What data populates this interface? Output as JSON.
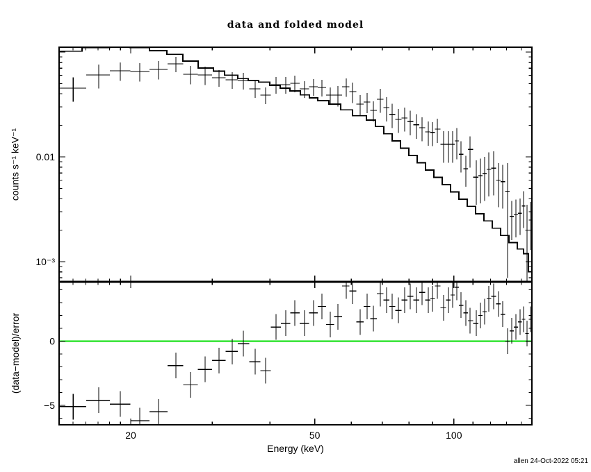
{
  "title": "data and folded model",
  "footer": "allen 24-Oct-2022 05:21",
  "colors": {
    "foreground": "#000000",
    "background": "#ffffff",
    "zero_line": "#00dd00"
  },
  "chart_data": {
    "type": "scatter",
    "subtype": "spectrum-with-residuals",
    "title": "data and folded model",
    "xlabel": "Energy (keV)",
    "x_scale": "log",
    "x_range": [
      14.0,
      147.5
    ],
    "x_major_ticks": [
      20,
      50,
      100
    ],
    "x_minor_ticks": [
      15,
      16,
      17,
      18,
      19,
      30,
      40,
      60,
      70,
      80,
      90,
      110,
      120,
      130,
      140
    ],
    "x_tick_labels": [
      {
        "v": 20,
        "label": "20"
      },
      {
        "v": 50,
        "label": "50"
      },
      {
        "v": 100,
        "label": "100"
      }
    ],
    "panels": [
      {
        "name": "spectrum",
        "ylabel": "counts s⁻¹ keV⁻¹",
        "y_scale": "log",
        "y_range": [
          0.000643,
          0.1112
        ],
        "y_major_ticks": [
          0.001,
          0.01,
          0.1
        ],
        "y_minor_ticks": [
          0.0007,
          0.0008,
          0.0009,
          0.002,
          0.003,
          0.004,
          0.005,
          0.006,
          0.007,
          0.008,
          0.009,
          0.02,
          0.03,
          0.04,
          0.05,
          0.06,
          0.07,
          0.08,
          0.09
        ],
        "y_tick_labels": [
          {
            "v": 0.01,
            "label": "0.01"
          },
          {
            "v": 0.001,
            "label": "10⁻³"
          }
        ],
        "data_points": {
          "E": [
            15.01,
            17.05,
            18.99,
            20.92,
            22.97,
            25.05,
            26.94,
            28.97,
            31.05,
            33.15,
            35.05,
            37.17,
            39.15,
            41.24,
            43.29,
            45.28,
            47.54,
            49.72,
            51.84,
            54.03,
            56.13,
            58.51,
            60.36,
            62.71,
            64.93,
            66.97,
            69.33,
            71.53,
            73.54,
            75.87,
            78.27,
            80.45,
            83.01,
            85.34,
            88.05,
            89.89,
            92.09,
            94.99,
            97.32,
            99.37,
            101.46,
            103.59,
            106.12,
            108.35,
            111.79,
            114.13,
            116.52,
            118.96,
            121.87,
            124.85,
            127.48,
            130.61,
            133.36,
            136.16,
            139.03,
            141.46,
            143.92,
            146.44
          ],
          "value": [
            0.0453,
            0.0605,
            0.0663,
            0.0653,
            0.0683,
            0.0772,
            0.0614,
            0.0605,
            0.0569,
            0.0543,
            0.0535,
            0.0446,
            0.0389,
            0.0488,
            0.0488,
            0.0504,
            0.0446,
            0.0467,
            0.046,
            0.0389,
            0.0389,
            0.0467,
            0.0419,
            0.0319,
            0.0334,
            0.0278,
            0.0355,
            0.0295,
            0.0254,
            0.0228,
            0.0235,
            0.0218,
            0.0202,
            0.019,
            0.0173,
            0.0171,
            0.0184,
            0.0132,
            0.0132,
            0.0132,
            0.0142,
            0.0106,
            0.0077,
            0.0118,
            0.0064,
            0.0066,
            0.0069,
            0.0076,
            0.0078,
            0.006,
            0.0058,
            0.0047,
            0.0027,
            0.0028,
            0.0029,
            0.0034,
            0.002,
            0.0025
          ],
          "err": [
            0.0118,
            0.0157,
            0.0133,
            0.0131,
            0.0137,
            0.013,
            0.0123,
            0.0121,
            0.0102,
            0.0098,
            0.0096,
            0.008,
            0.007,
            0.0088,
            0.0088,
            0.0091,
            0.008,
            0.0084,
            0.0083,
            0.007,
            0.0086,
            0.0093,
            0.0092,
            0.007,
            0.0073,
            0.0061,
            0.0092,
            0.0077,
            0.0066,
            0.0059,
            0.0061,
            0.0057,
            0.0053,
            0.0049,
            0.0045,
            0.0044,
            0.0048,
            0.0044,
            0.0044,
            0.0044,
            0.0047,
            0.0035,
            0.0025,
            0.0039,
            0.0029,
            0.003,
            0.0031,
            0.0034,
            0.0035,
            0.0027,
            0.0026,
            0.004,
            0.0011,
            0.0011,
            0.0011,
            0.0013,
            0.0015,
            0.0012
          ]
        },
        "model_steps": {
          "edges": [
            14.0,
            15.69,
            18.03,
            19.93,
            21.96,
            23.95,
            25.93,
            27.99,
            30.2,
            31.92,
            34.1,
            35.91,
            37.82,
            39.99,
            42.11,
            44.21,
            46.55,
            48.7,
            50.76,
            53.67,
            56.9,
            60.36,
            64.71,
            67.68,
            70.54,
            73.54,
            76.68,
            79.92,
            83.3,
            86.83,
            90.5,
            94.35,
            98.34,
            102.53,
            106.86,
            111.41,
            116.12,
            121.07,
            126.19,
            131.53,
            137.1,
            141.46,
            144.96,
            147.48
          ],
          "values": [
            0.102,
            0.1105,
            0.114,
            0.1105,
            0.1031,
            0.0952,
            0.0822,
            0.0704,
            0.0656,
            0.0602,
            0.0558,
            0.0535,
            0.0517,
            0.0479,
            0.0453,
            0.0426,
            0.039,
            0.0366,
            0.0344,
            0.0319,
            0.0281,
            0.0247,
            0.0224,
            0.0195,
            0.0166,
            0.0142,
            0.0121,
            0.0103,
            0.00877,
            0.00749,
            0.00638,
            0.00543,
            0.00464,
            0.00395,
            0.00337,
            0.00287,
            0.00245,
            0.00209,
            0.00178,
            0.00152,
            0.00132,
            0.00119,
            0.0008
          ]
        }
      },
      {
        "name": "residuals",
        "ylabel": "(data−model)/error",
        "y_scale": "linear",
        "y_range": [
          -6.54,
          4.62
        ],
        "y_major_ticks": [
          -5,
          0
        ],
        "y_minor_ticks": [
          -6,
          -4,
          -3,
          -2,
          -1,
          1,
          2,
          3,
          4
        ],
        "y_tick_labels": [
          {
            "v": 0,
            "label": "0"
          },
          {
            "v": -5,
            "label": "−5"
          }
        ],
        "zero_line": 0,
        "points": {
          "E": [
            15.01,
            17.05,
            18.99,
            20.92,
            22.97,
            25.05,
            26.94,
            28.97,
            31.05,
            33.15,
            35.05,
            37.17,
            39.15,
            41.24,
            43.29,
            45.28,
            47.54,
            49.72,
            51.84,
            54.03,
            56.13,
            58.51,
            60.36,
            62.71,
            64.93,
            66.97,
            69.33,
            71.53,
            73.54,
            75.87,
            78.27,
            80.45,
            83.01,
            85.34,
            88.05,
            89.89,
            92.09,
            94.99,
            97.32,
            99.37,
            101.46,
            103.59,
            106.12,
            108.35,
            111.79,
            114.13,
            116.52,
            118.96,
            121.87,
            124.85,
            127.48,
            130.61,
            133.36,
            136.16,
            139.03,
            141.46,
            143.92,
            146.44
          ],
          "value": [
            -5.1,
            -4.6,
            -4.9,
            -6.2,
            -5.5,
            -1.9,
            -3.4,
            -2.2,
            -1.5,
            -0.8,
            -0.2,
            -1.6,
            -2.3,
            1.1,
            1.4,
            2.2,
            1.4,
            2.2,
            2.7,
            1.3,
            1.9,
            4.3,
            3.9,
            1.5,
            2.7,
            1.75,
            3.7,
            3.2,
            2.7,
            2.4,
            3.2,
            3.5,
            3.2,
            3.8,
            3.2,
            3.3,
            4.3,
            2.6,
            3.2,
            3.6,
            4.2,
            2.8,
            2.2,
            1.6,
            1.4,
            2.0,
            2.3,
            3.3,
            3.5,
            2.9,
            2.1,
            0.0,
            0.8,
            1.1,
            1.5,
            1.7,
            0.6,
            1.7
          ],
          "err": 1
        }
      }
    ]
  }
}
